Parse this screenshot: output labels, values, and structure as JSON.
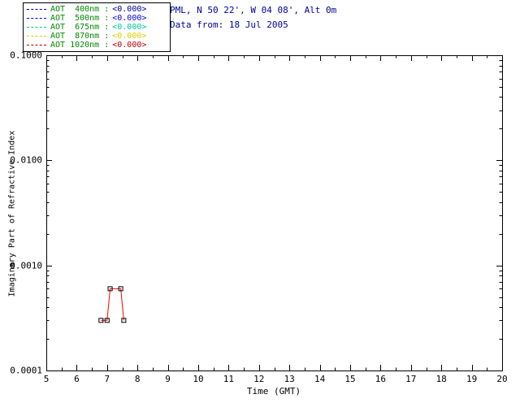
{
  "header": {
    "location_line": "PML, N 50 22', W 04 08', Alt 0m",
    "data_line": "Data from: 18 Jul 2005",
    "color": "#000099"
  },
  "legend": {
    "label_color": "#008800",
    "items": [
      {
        "label": "AOT  400nm :",
        "value": "<0.000>",
        "color": "#000099"
      },
      {
        "label": "AOT  500nm :",
        "value": "<0.000>",
        "color": "#0000ee"
      },
      {
        "label": "AOT  675nm :",
        "value": "<0.000>",
        "color": "#00cc99"
      },
      {
        "label": "AOT  870nm :",
        "value": "<0.000>",
        "color": "#e0d000"
      },
      {
        "label": "AOT 1020nm :",
        "value": "<0.000>",
        "color": "#bb0000"
      }
    ]
  },
  "chart_data": {
    "type": "line",
    "title": "",
    "xlabel": "Time (GMT)",
    "ylabel": "Imaginary Part of Refractive Index",
    "x_scale": "linear",
    "y_scale": "log",
    "xlim": [
      5,
      20
    ],
    "ylim": [
      0.0001,
      0.1
    ],
    "x_ticks": [
      5,
      6,
      7,
      8,
      9,
      10,
      11,
      12,
      13,
      14,
      15,
      16,
      17,
      18,
      19,
      20
    ],
    "y_ticks": [
      {
        "value": 0.1,
        "label": "0.1000"
      },
      {
        "value": 0.01,
        "label": "0.0100"
      },
      {
        "value": 0.001,
        "label": "0.0010"
      },
      {
        "value": 0.0001,
        "label": "0.0001"
      }
    ],
    "grid": false,
    "legend_position": "top-left",
    "series": [
      {
        "name": "imaginary-refractive-index",
        "color": "#ff0000",
        "marker": "open-square",
        "marker_color": "#000000",
        "x": [
          6.8,
          7.0,
          7.1,
          7.45,
          7.55
        ],
        "y": [
          0.0003,
          0.0003,
          0.0006,
          0.0006,
          0.0003
        ]
      }
    ]
  }
}
